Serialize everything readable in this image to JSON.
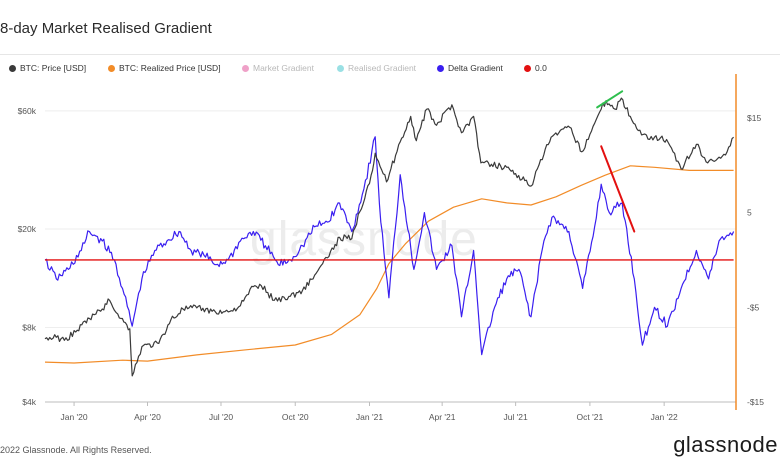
{
  "title": "8-day Market Realised Gradient",
  "footer": "2022 Glassnode. All Rights Reserved.",
  "brand": "glassnode",
  "watermark": "glassnode",
  "legend": [
    {
      "label": "BTC: Price [USD]",
      "color": "#3a3a3a",
      "dim": false
    },
    {
      "label": "BTC: Realized Price [USD]",
      "color": "#f28c28",
      "dim": false
    },
    {
      "label": "Market Gradient",
      "color": "#e879b0",
      "dim": true
    },
    {
      "label": "Realised Gradient",
      "color": "#6fd3d8",
      "dim": true
    },
    {
      "label": "Delta Gradient",
      "color": "#3a1ff0",
      "dim": false
    },
    {
      "label": "0.0",
      "color": "#e31010",
      "dim": false
    }
  ],
  "chart_data": {
    "type": "line",
    "x_ticks": [
      "Jan '20",
      "Apr '20",
      "Jul '20",
      "Oct '20",
      "Jan '21",
      "Apr '21",
      "Jul '21",
      "Oct '21",
      "Jan '22"
    ],
    "left_axis": {
      "scale": "log",
      "ticks": [
        "$4k",
        "$8k",
        "$20k",
        "$60k"
      ],
      "range": [
        4000,
        80000
      ]
    },
    "right_axis": {
      "ticks": [
        "$15",
        "5",
        "-$5",
        "-$15"
      ],
      "range": [
        -15,
        19
      ]
    },
    "series": [
      {
        "name": "BTC: Price [USD]",
        "axis": "left",
        "color": "#3a3a3a",
        "points": [
          [
            "2019-11-26",
            7200
          ],
          [
            "2019-12-10",
            7300
          ],
          [
            "2019-12-20",
            7100
          ],
          [
            "2020-01-05",
            7800
          ],
          [
            "2020-01-20",
            8700
          ],
          [
            "2020-02-05",
            9500
          ],
          [
            "2020-02-14",
            10300
          ],
          [
            "2020-02-28",
            8700
          ],
          [
            "2020-03-10",
            7900
          ],
          [
            "2020-03-13",
            5100
          ],
          [
            "2020-03-25",
            6700
          ],
          [
            "2020-04-15",
            6900
          ],
          [
            "2020-04-30",
            8600
          ],
          [
            "2020-05-15",
            9500
          ],
          [
            "2020-06-01",
            9600
          ],
          [
            "2020-06-20",
            9300
          ],
          [
            "2020-07-10",
            9250
          ],
          [
            "2020-07-25",
            9800
          ],
          [
            "2020-08-10",
            11700
          ],
          [
            "2020-08-20",
            11800
          ],
          [
            "2020-09-05",
            10300
          ],
          [
            "2020-09-25",
            10700
          ],
          [
            "2020-10-10",
            11300
          ],
          [
            "2020-10-25",
            13000
          ],
          [
            "2020-11-10",
            15300
          ],
          [
            "2020-11-25",
            18500
          ],
          [
            "2020-12-10",
            18300
          ],
          [
            "2020-12-20",
            23500
          ],
          [
            "2021-01-03",
            33000
          ],
          [
            "2021-01-08",
            40500
          ],
          [
            "2021-01-22",
            31000
          ],
          [
            "2021-02-08",
            45000
          ],
          [
            "2021-02-21",
            57000
          ],
          [
            "2021-02-28",
            45500
          ],
          [
            "2021-03-13",
            61000
          ],
          [
            "2021-03-25",
            52500
          ],
          [
            "2021-04-13",
            63500
          ],
          [
            "2021-04-25",
            49000
          ],
          [
            "2021-05-10",
            57000
          ],
          [
            "2021-05-19",
            37000
          ],
          [
            "2021-06-01",
            36500
          ],
          [
            "2021-06-20",
            35500
          ],
          [
            "2021-07-01",
            33500
          ],
          [
            "2021-07-20",
            29800
          ],
          [
            "2021-08-05",
            40000
          ],
          [
            "2021-08-14",
            47000
          ],
          [
            "2021-09-06",
            51500
          ],
          [
            "2021-09-21",
            41000
          ],
          [
            "2021-10-05",
            52000
          ],
          [
            "2021-10-15",
            61000
          ],
          [
            "2021-10-21",
            66000
          ],
          [
            "2021-11-01",
            61000
          ],
          [
            "2021-11-09",
            67600
          ],
          [
            "2021-11-20",
            57000
          ],
          [
            "2021-12-04",
            48000
          ],
          [
            "2021-12-20",
            47000
          ],
          [
            "2022-01-04",
            46000
          ],
          [
            "2022-01-22",
            35000
          ],
          [
            "2022-02-10",
            44000
          ],
          [
            "2022-02-24",
            37000
          ],
          [
            "2022-03-10",
            39000
          ],
          [
            "2022-03-20",
            41000
          ],
          [
            "2022-03-28",
            47000
          ]
        ]
      },
      {
        "name": "BTC: Realized Price [USD]",
        "axis": "left",
        "color": "#f28c28",
        "points": [
          [
            "2019-11-26",
            5800
          ],
          [
            "2020-01-01",
            5750
          ],
          [
            "2020-03-01",
            5900
          ],
          [
            "2020-04-01",
            5850
          ],
          [
            "2020-06-01",
            6200
          ],
          [
            "2020-08-01",
            6500
          ],
          [
            "2020-10-01",
            6800
          ],
          [
            "2020-11-15",
            7500
          ],
          [
            "2020-12-20",
            9000
          ],
          [
            "2021-01-10",
            11500
          ],
          [
            "2021-01-25",
            14500
          ],
          [
            "2021-02-15",
            17500
          ],
          [
            "2021-03-15",
            21500
          ],
          [
            "2021-04-15",
            24500
          ],
          [
            "2021-05-20",
            26500
          ],
          [
            "2021-06-20",
            25500
          ],
          [
            "2021-07-20",
            25000
          ],
          [
            "2021-08-20",
            27000
          ],
          [
            "2021-09-20",
            30000
          ],
          [
            "2021-10-20",
            33000
          ],
          [
            "2021-11-20",
            36000
          ],
          [
            "2021-12-20",
            35500
          ],
          [
            "2022-02-01",
            34500
          ],
          [
            "2022-03-28",
            34500
          ]
        ]
      },
      {
        "name": "Delta Gradient",
        "axis": "right",
        "color": "#3a1ff0",
        "points": [
          [
            "2019-11-26",
            0
          ],
          [
            "2019-12-10",
            -2
          ],
          [
            "2019-12-25",
            -1
          ],
          [
            "2020-01-10",
            1
          ],
          [
            "2020-01-20",
            3
          ],
          [
            "2020-02-05",
            2
          ],
          [
            "2020-02-20",
            0
          ],
          [
            "2020-03-01",
            -3
          ],
          [
            "2020-03-13",
            -7
          ],
          [
            "2020-03-25",
            -2
          ],
          [
            "2020-04-10",
            1
          ],
          [
            "2020-04-25",
            2
          ],
          [
            "2020-05-10",
            3
          ],
          [
            "2020-05-25",
            1
          ],
          [
            "2020-06-10",
            0.5
          ],
          [
            "2020-06-25",
            -0.5
          ],
          [
            "2020-07-10",
            0
          ],
          [
            "2020-07-25",
            2
          ],
          [
            "2020-08-10",
            3
          ],
          [
            "2020-08-25",
            1.5
          ],
          [
            "2020-09-10",
            -0.5
          ],
          [
            "2020-09-25",
            0
          ],
          [
            "2020-10-10",
            1.5
          ],
          [
            "2020-10-25",
            3.5
          ],
          [
            "2020-11-10",
            4
          ],
          [
            "2020-11-25",
            6
          ],
          [
            "2020-12-10",
            3
          ],
          [
            "2020-12-25",
            7.5
          ],
          [
            "2021-01-08",
            13
          ],
          [
            "2021-01-15",
            4
          ],
          [
            "2021-01-25",
            -4
          ],
          [
            "2021-02-08",
            9
          ],
          [
            "2021-02-25",
            -1
          ],
          [
            "2021-03-10",
            5
          ],
          [
            "2021-03-25",
            -1
          ],
          [
            "2021-04-13",
            1.5
          ],
          [
            "2021-04-25",
            -6
          ],
          [
            "2021-05-10",
            1
          ],
          [
            "2021-05-20",
            -10
          ],
          [
            "2021-06-05",
            -5
          ],
          [
            "2021-06-20",
            -2
          ],
          [
            "2021-07-05",
            -1
          ],
          [
            "2021-07-20",
            -6
          ],
          [
            "2021-08-05",
            2
          ],
          [
            "2021-08-15",
            4.5
          ],
          [
            "2021-09-05",
            3
          ],
          [
            "2021-09-22",
            -3
          ],
          [
            "2021-10-05",
            2.5
          ],
          [
            "2021-10-15",
            8
          ],
          [
            "2021-10-25",
            5
          ],
          [
            "2021-11-10",
            6
          ],
          [
            "2021-11-25",
            -2
          ],
          [
            "2021-12-05",
            -9
          ],
          [
            "2021-12-20",
            -5
          ],
          [
            "2022-01-05",
            -7
          ],
          [
            "2022-01-22",
            -3
          ],
          [
            "2022-02-10",
            1
          ],
          [
            "2022-02-25",
            -2
          ],
          [
            "2022-03-10",
            2
          ],
          [
            "2022-03-28",
            3
          ]
        ]
      },
      {
        "name": "0.0",
        "axis": "right",
        "color": "#e31010",
        "points": [
          [
            "2019-11-26",
            0
          ],
          [
            "2022-03-28",
            0
          ]
        ]
      }
    ],
    "annotations": [
      {
        "type": "trend-line",
        "color": "#2fbf4f",
        "from": [
          "2021-10-10",
          62000
        ],
        "to": [
          "2021-11-10",
          72000
        ],
        "axis": "left"
      },
      {
        "type": "trend-line",
        "color": "#e31010",
        "from": [
          "2021-10-15",
          12
        ],
        "to": [
          "2021-11-25",
          3
        ],
        "axis": "right"
      }
    ]
  }
}
